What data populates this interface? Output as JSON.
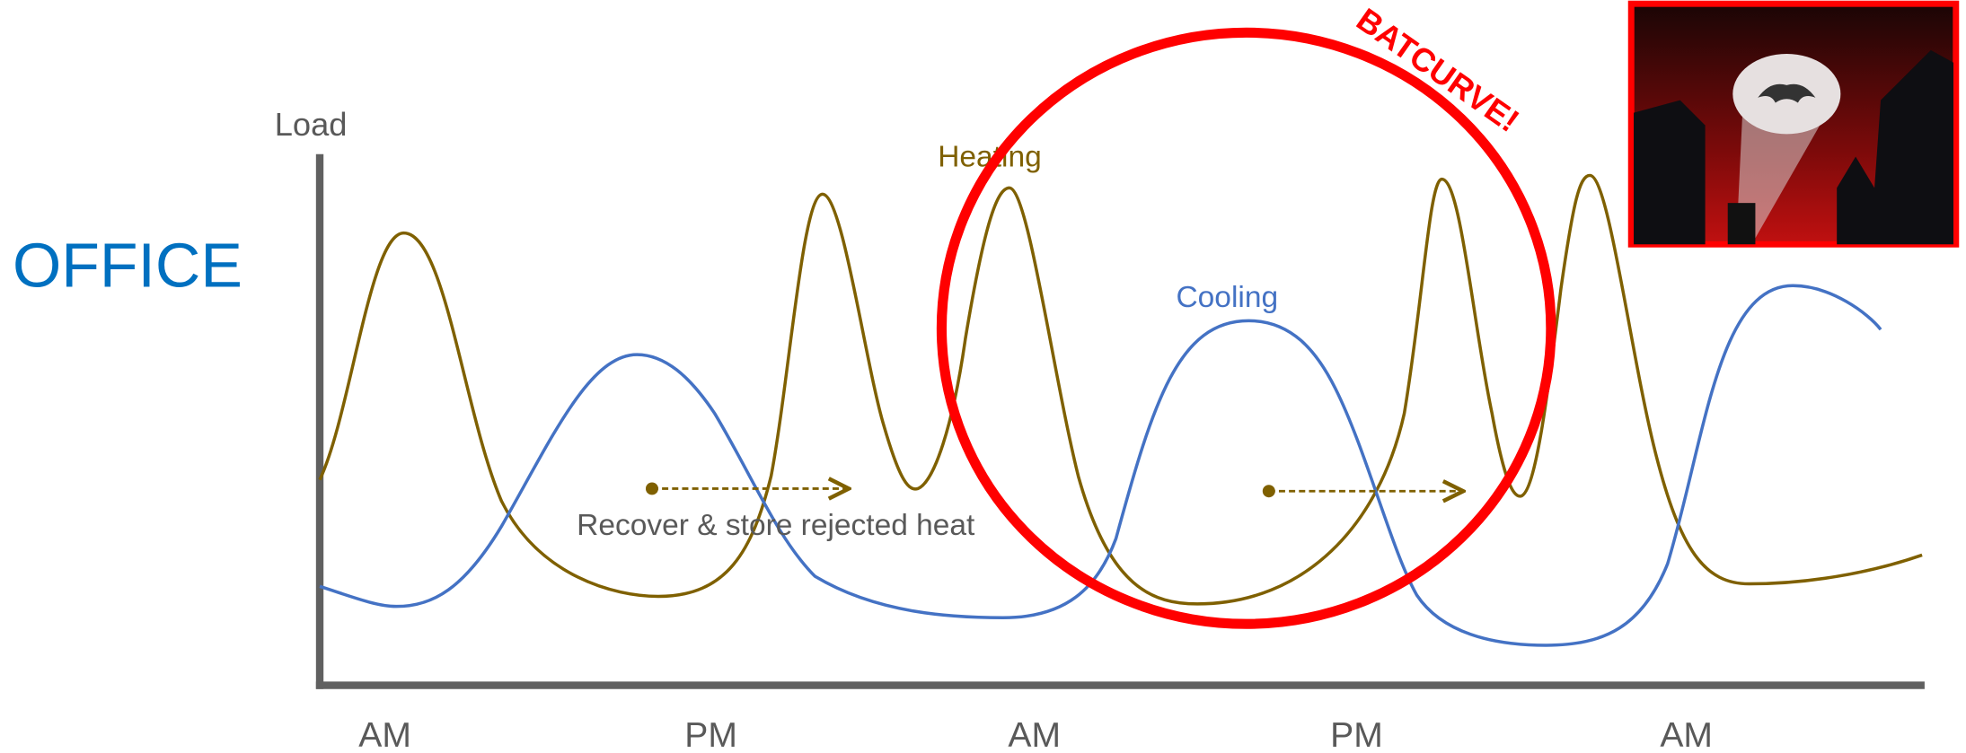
{
  "title": "OFFICE",
  "axis": {
    "y_label": "Load",
    "x_labels": [
      "AM",
      "PM",
      "AM",
      "PM",
      "AM"
    ]
  },
  "curves": {
    "heating": "Heating",
    "cooling": "Cooling"
  },
  "annotation": "Recover & store rejected heat",
  "callout": "BATCURVE!"
}
